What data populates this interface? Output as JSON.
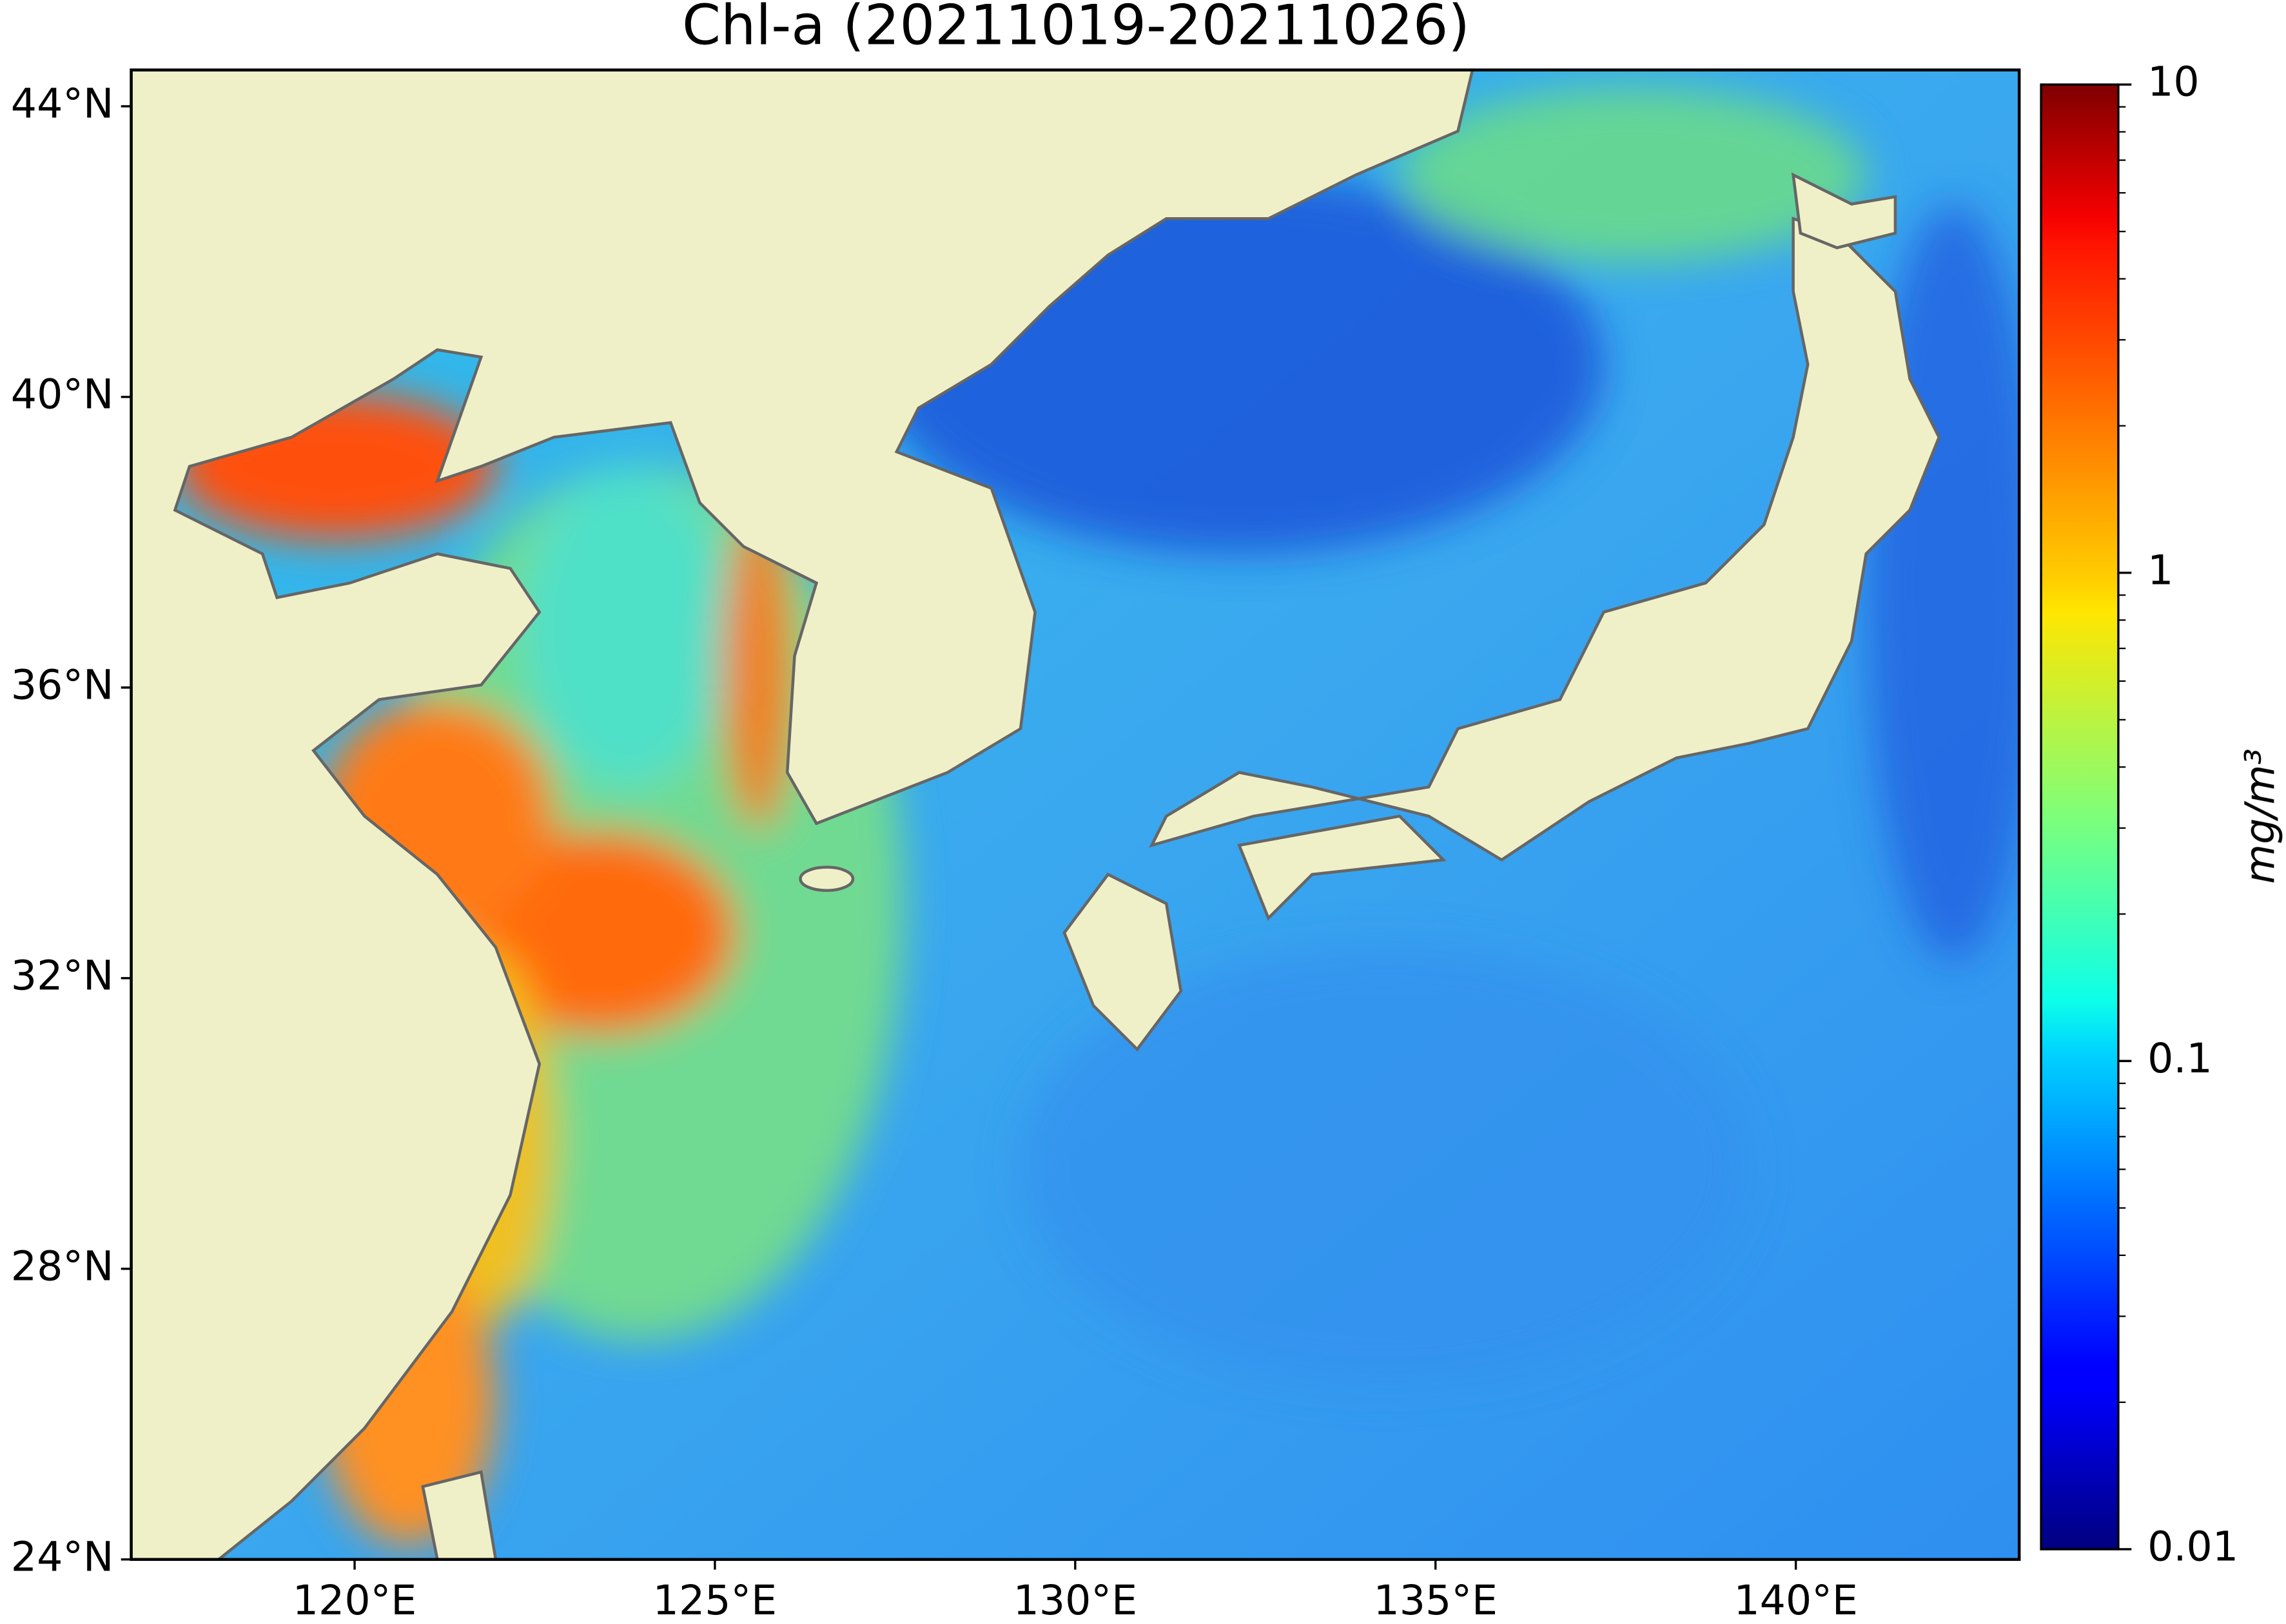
{
  "title": "Chl-a (20211019-20211026)",
  "map": {
    "xlim": [
      116.9,
      143.1
    ],
    "ylim": [
      24,
      44.5
    ],
    "xticks": [
      {
        "value": 120,
        "label": "120°E"
      },
      {
        "value": 125,
        "label": "125°E"
      },
      {
        "value": 130,
        "label": "130°E"
      },
      {
        "value": 135,
        "label": "135°E"
      },
      {
        "value": 140,
        "label": "140°E"
      }
    ],
    "yticks": [
      {
        "value": 24,
        "label": "24°N"
      },
      {
        "value": 28,
        "label": "28°N"
      },
      {
        "value": 32,
        "label": "32°N"
      },
      {
        "value": 36,
        "label": "36°N"
      },
      {
        "value": 40,
        "label": "40°N"
      },
      {
        "value": 44,
        "label": "44°N"
      }
    ],
    "land_color": "#f0f0c8"
  },
  "colorbar": {
    "label": "mg/m³",
    "clim": [
      0.01,
      10
    ],
    "ticks": [
      0.01,
      0.1,
      1,
      10
    ],
    "scale": "log",
    "colormap": "jet"
  }
}
